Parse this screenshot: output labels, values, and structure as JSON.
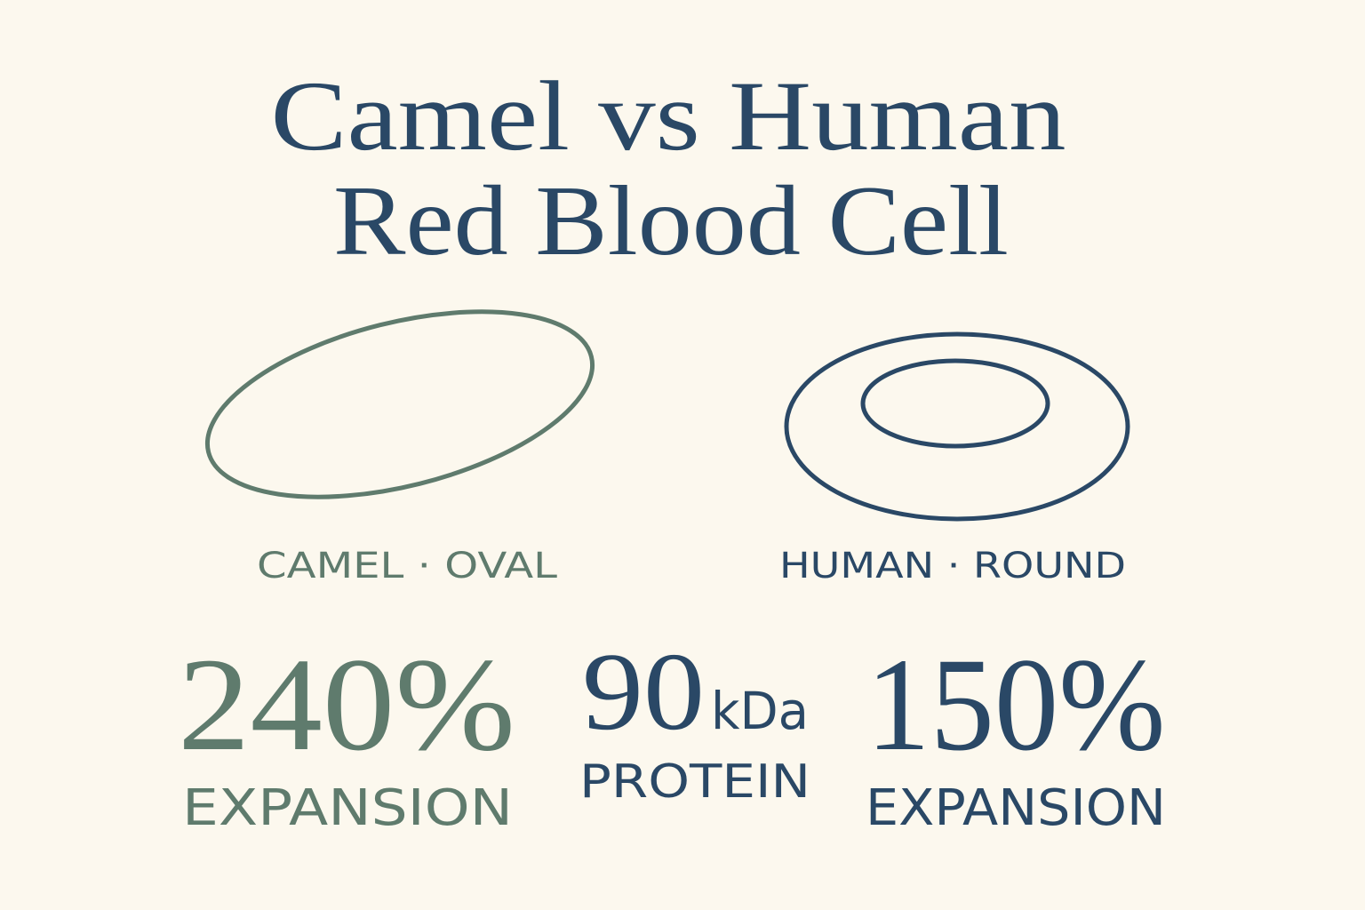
{
  "title": {
    "line1": "Camel vs Human",
    "line2": "Red Blood Cell"
  },
  "cells": [
    {
      "label": "CAMEL · OVAL"
    },
    {
      "label": "HUMAN · ROUND"
    }
  ],
  "stats": [
    {
      "value": "240%",
      "caption": "EXPANSION"
    },
    {
      "value": "90",
      "unit": "kDa",
      "caption": "PROTEIN"
    },
    {
      "value": "150%",
      "caption": "EXPANSION"
    }
  ]
}
